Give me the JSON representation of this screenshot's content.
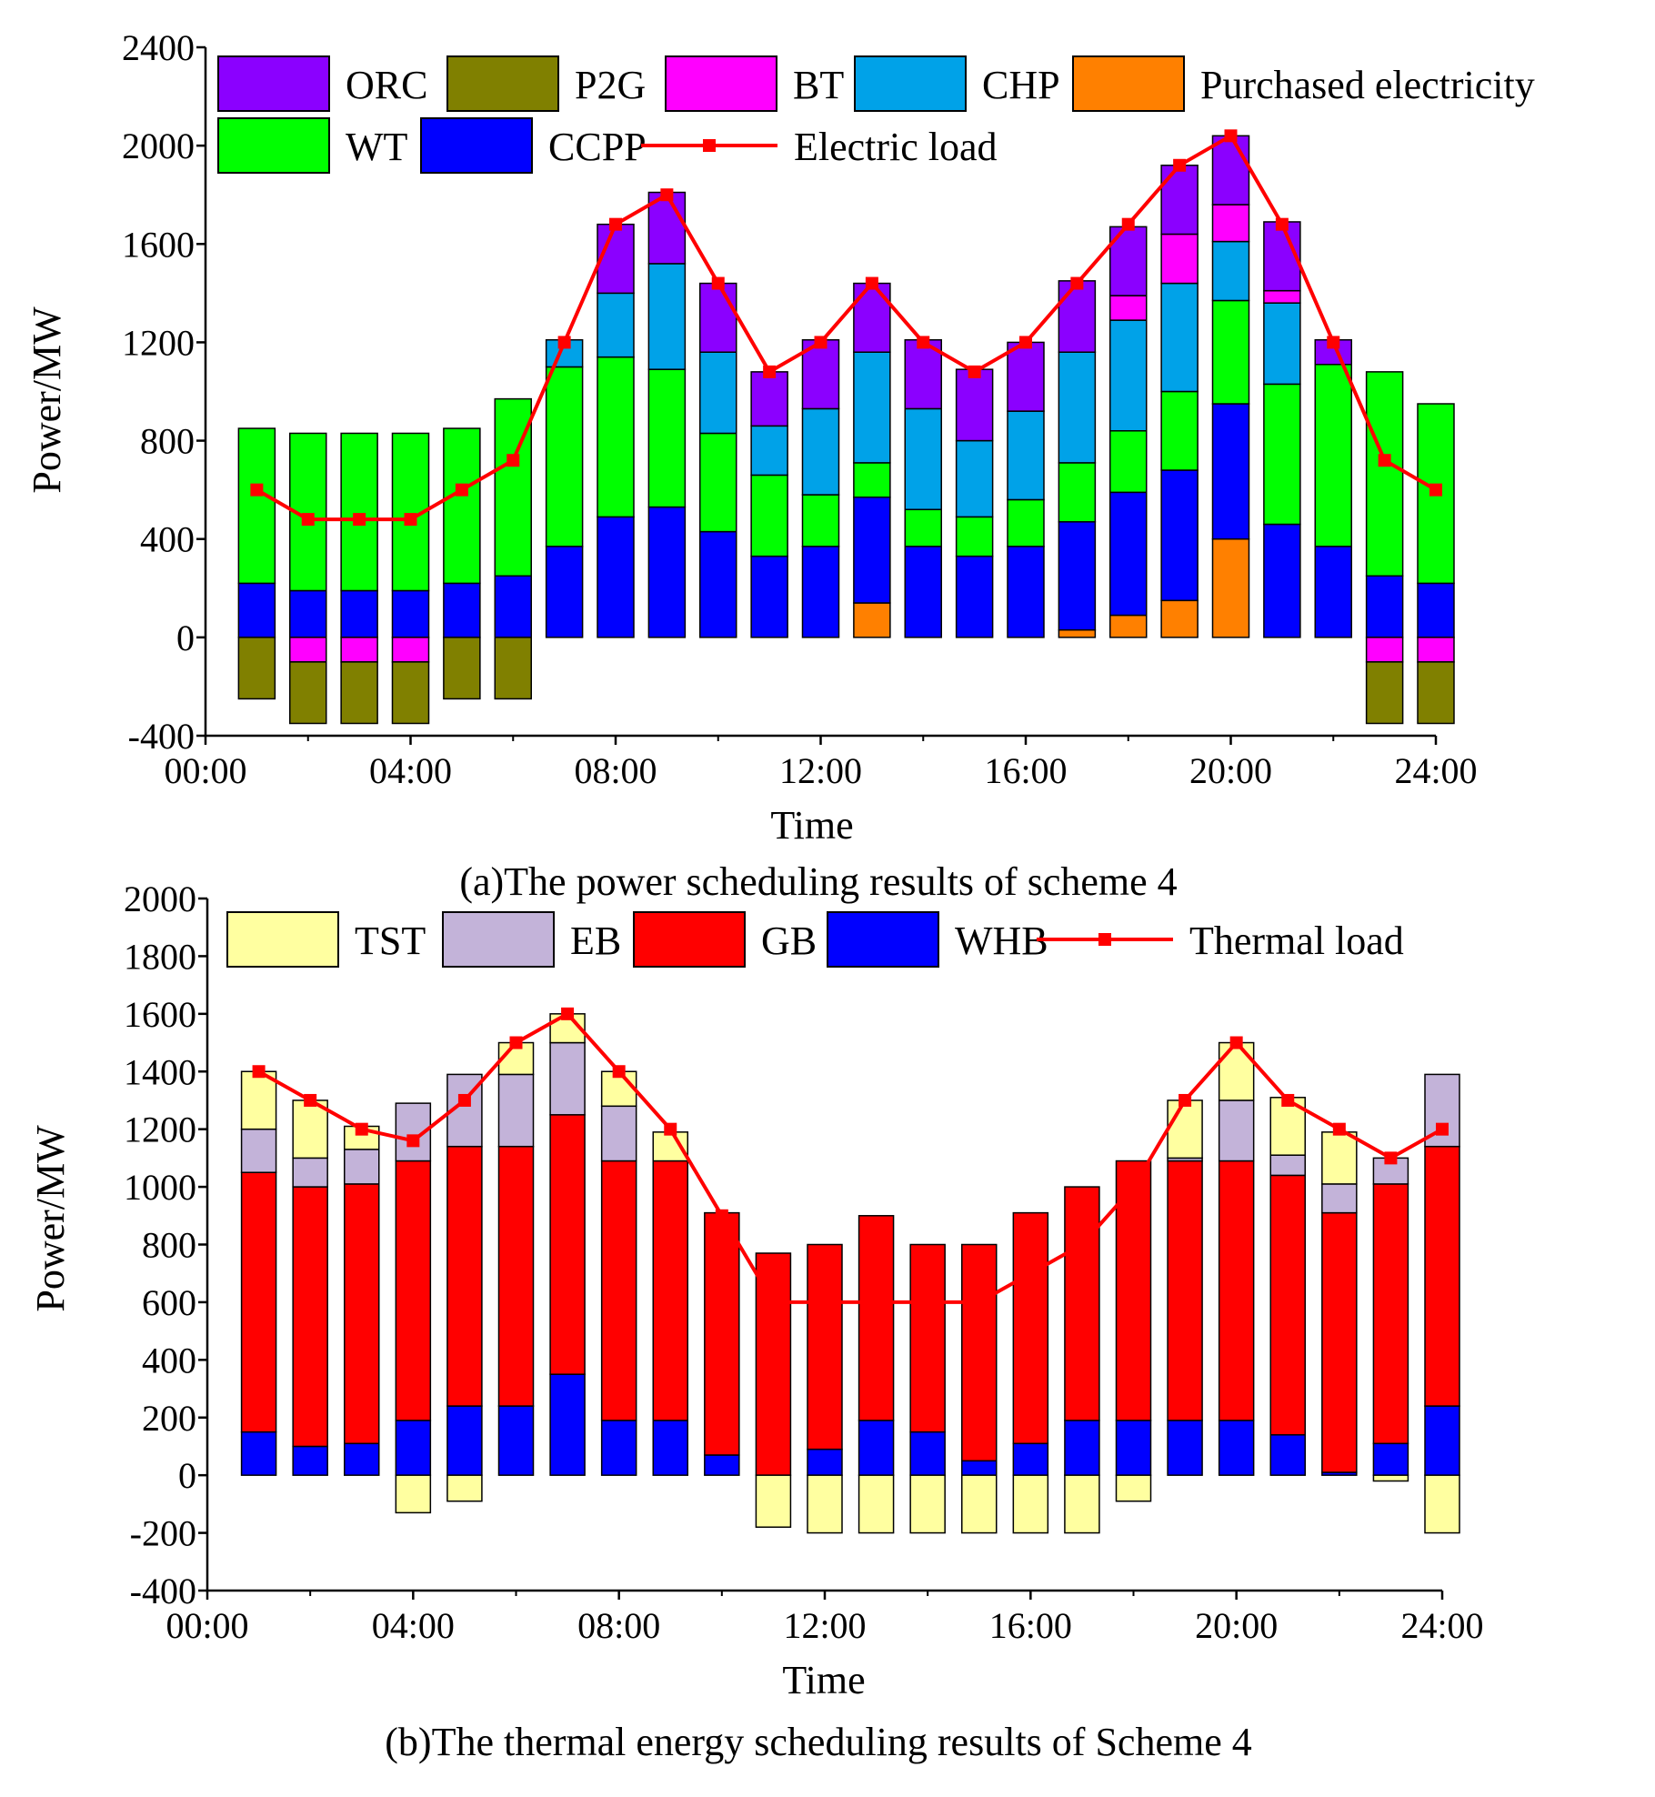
{
  "chart_data": [
    {
      "id": "a",
      "type": "stacked-bar+line",
      "caption": "(a)The power scheduling results of scheme 4",
      "xlabel": "Time",
      "ylabel": "Power/MW",
      "ylim": [
        -400,
        2400
      ],
      "yticks": [
        -400,
        0,
        400,
        800,
        1200,
        1600,
        2000,
        2400
      ],
      "xlim": [
        0,
        24
      ],
      "xticks": [
        0,
        4,
        8,
        12,
        16,
        20,
        24
      ],
      "xtick_labels": [
        "00:00",
        "04:00",
        "08:00",
        "12:00",
        "16:00",
        "20:00",
        "24:00"
      ],
      "hours": [
        1,
        2,
        3,
        4,
        5,
        6,
        7,
        8,
        9,
        10,
        11,
        12,
        13,
        14,
        15,
        16,
        17,
        18,
        19,
        20,
        21,
        22,
        23,
        24
      ],
      "stack_order_positive": [
        "Purchased electricity",
        "CCPP",
        "WT",
        "CHP",
        "BT",
        "ORC"
      ],
      "stack_order_negative": [
        "BT",
        "P2G"
      ],
      "series": [
        {
          "name": "ORC",
          "color": "#8B00FF",
          "values": [
            0,
            0,
            0,
            0,
            0,
            0,
            0,
            280,
            290,
            280,
            220,
            280,
            280,
            280,
            290,
            280,
            290,
            280,
            280,
            280,
            280,
            100,
            0,
            0
          ]
        },
        {
          "name": "P2G",
          "color": "#808000",
          "values": [
            -250,
            -250,
            -250,
            -250,
            -250,
            -250,
            0,
            0,
            0,
            0,
            0,
            0,
            0,
            0,
            0,
            0,
            0,
            0,
            0,
            0,
            0,
            0,
            -250,
            -250
          ]
        },
        {
          "name": "BT",
          "color": "#FF00FF",
          "values": [
            0,
            -100,
            -100,
            -100,
            0,
            0,
            0,
            0,
            0,
            0,
            0,
            0,
            0,
            0,
            0,
            0,
            0,
            100,
            200,
            150,
            50,
            0,
            -100,
            -100
          ]
        },
        {
          "name": "CHP",
          "color": "#00A2E8",
          "values": [
            0,
            0,
            0,
            0,
            0,
            0,
            110,
            260,
            430,
            330,
            200,
            350,
            450,
            410,
            310,
            360,
            450,
            450,
            440,
            240,
            330,
            0,
            0,
            0
          ]
        },
        {
          "name": "Purchased electricity",
          "color": "#FF8000",
          "values": [
            0,
            0,
            0,
            0,
            0,
            0,
            0,
            0,
            0,
            0,
            0,
            0,
            140,
            0,
            0,
            0,
            30,
            90,
            150,
            400,
            0,
            0,
            0,
            0
          ]
        },
        {
          "name": "WT",
          "color": "#00FF00",
          "values": [
            630,
            640,
            640,
            640,
            630,
            720,
            730,
            650,
            560,
            400,
            330,
            210,
            140,
            150,
            160,
            190,
            240,
            250,
            320,
            420,
            570,
            740,
            830,
            730
          ]
        },
        {
          "name": "CCPP",
          "color": "#0000FF",
          "values": [
            220,
            190,
            190,
            190,
            220,
            250,
            370,
            490,
            530,
            430,
            330,
            370,
            430,
            370,
            330,
            370,
            440,
            500,
            530,
            550,
            460,
            370,
            250,
            220
          ]
        }
      ],
      "line": {
        "name": "Electric load",
        "color": "#FF0000",
        "values": [
          600,
          480,
          480,
          480,
          600,
          720,
          1200,
          1680,
          1800,
          1440,
          1080,
          1200,
          1440,
          1200,
          1080,
          1200,
          1440,
          1680,
          1920,
          2040,
          1680,
          1200,
          720,
          600
        ]
      },
      "legend": [
        [
          "ORC",
          "P2G",
          "BT",
          "CHP",
          "Purchased electricity"
        ],
        [
          "WT",
          "CCPP",
          "Electric load"
        ]
      ]
    },
    {
      "id": "b",
      "type": "stacked-bar+line",
      "caption": "(b)The thermal energy scheduling results of Scheme 4",
      "xlabel": "Time",
      "ylabel": "Power/MW",
      "ylim": [
        -400,
        2000
      ],
      "yticks": [
        -400,
        -200,
        0,
        200,
        400,
        600,
        800,
        1000,
        1200,
        1400,
        1600,
        1800,
        2000
      ],
      "xlim": [
        0,
        24
      ],
      "xticks": [
        0,
        4,
        8,
        12,
        16,
        20,
        24
      ],
      "xtick_labels": [
        "00:00",
        "04:00",
        "08:00",
        "12:00",
        "16:00",
        "20:00",
        "24:00"
      ],
      "hours": [
        1,
        2,
        3,
        4,
        5,
        6,
        7,
        8,
        9,
        10,
        11,
        12,
        13,
        14,
        15,
        16,
        17,
        18,
        19,
        20,
        21,
        22,
        23,
        24
      ],
      "stack_order_positive": [
        "WHB",
        "GB",
        "EB",
        "TST"
      ],
      "stack_order_negative": [
        "TST"
      ],
      "series": [
        {
          "name": "TST",
          "color": "#FFFFA0",
          "values": [
            200,
            200,
            80,
            -130,
            -90,
            110,
            100,
            120,
            100,
            0,
            -180,
            -200,
            -200,
            -200,
            -200,
            -200,
            -200,
            -90,
            200,
            200,
            200,
            180,
            -20,
            -200
          ]
        },
        {
          "name": "EB",
          "color": "#C3B3D9",
          "values": [
            150,
            100,
            120,
            200,
            250,
            250,
            250,
            190,
            0,
            0,
            0,
            0,
            0,
            0,
            0,
            0,
            0,
            0,
            10,
            210,
            70,
            100,
            90,
            250
          ]
        },
        {
          "name": "GB",
          "color": "#FF0000",
          "values": [
            900,
            900,
            900,
            900,
            900,
            900,
            900,
            900,
            900,
            840,
            770,
            710,
            710,
            650,
            750,
            800,
            810,
            900,
            900,
            900,
            900,
            900,
            900,
            900
          ]
        },
        {
          "name": "WHB",
          "color": "#0000FF",
          "values": [
            150,
            100,
            110,
            190,
            240,
            240,
            350,
            190,
            190,
            70,
            0,
            90,
            190,
            150,
            50,
            110,
            190,
            190,
            190,
            190,
            140,
            10,
            110,
            240
          ]
        }
      ],
      "line": {
        "name": "Thermal load",
        "color": "#FF0000",
        "values": [
          1400,
          1300,
          1200,
          1160,
          1300,
          1500,
          1600,
          1400,
          1200,
          900,
          600,
          600,
          600,
          600,
          600,
          700,
          800,
          1000,
          1300,
          1500,
          1300,
          1200,
          1100,
          1200
        ]
      },
      "legend": [
        [
          "TST",
          "EB",
          "GB",
          "WHB",
          "Thermal load"
        ]
      ]
    }
  ]
}
